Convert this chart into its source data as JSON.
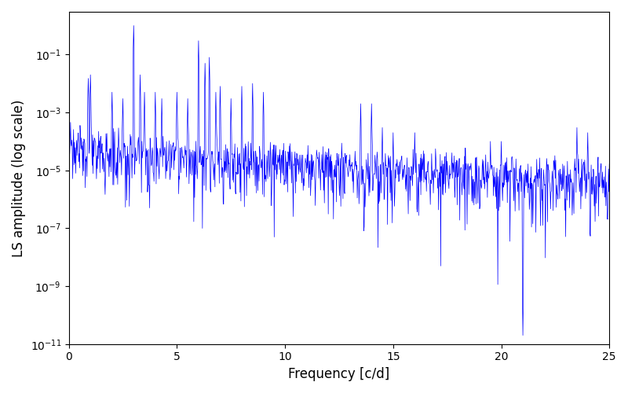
{
  "title": "",
  "xlabel": "Frequency [c/d]",
  "ylabel": "LS amplitude (log scale)",
  "xlim": [
    0,
    25
  ],
  "ylim": [
    1e-11,
    3.0
  ],
  "line_color": "blue",
  "linewidth": 0.5,
  "figsize": [
    8.0,
    5.0
  ],
  "dpi": 100,
  "seed": 42,
  "freq_step": 0.02,
  "background_color": "white"
}
